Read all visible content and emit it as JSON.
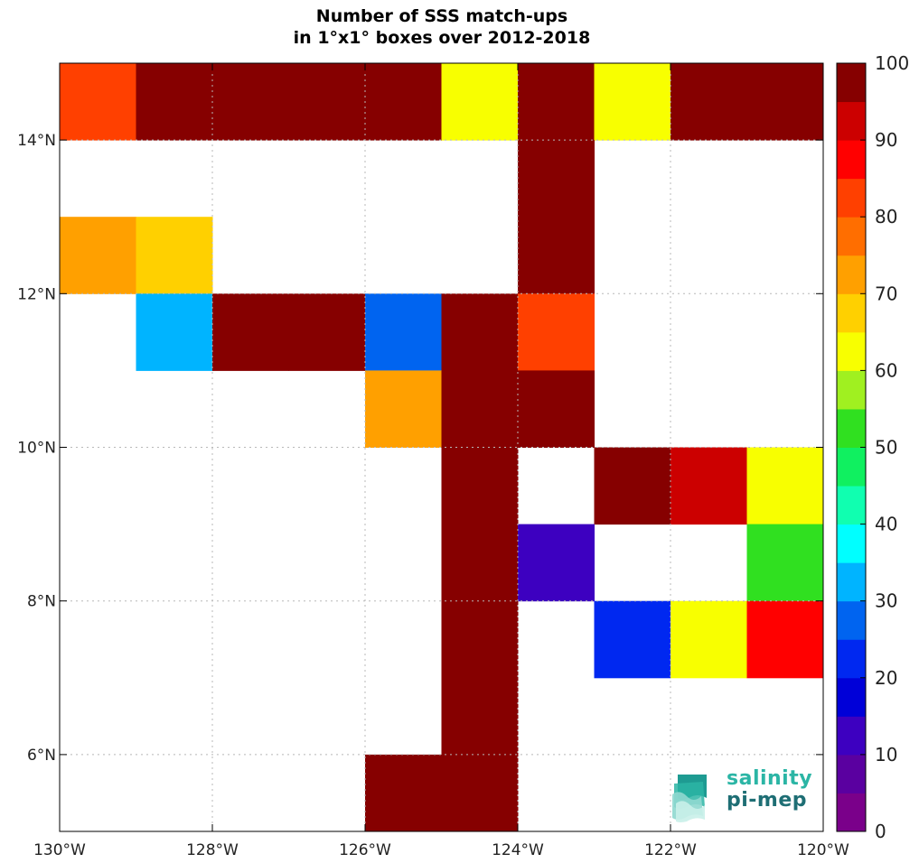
{
  "chart_data": {
    "type": "heatmap",
    "title_lines": [
      "Number of SSS match-ups",
      "in 1°x1° boxes over 2012-2018"
    ],
    "x_range": [
      -130,
      -120
    ],
    "y_range": [
      5,
      15
    ],
    "x_ticks": [
      {
        "value": -130,
        "label": "130°W"
      },
      {
        "value": -128,
        "label": "128°W"
      },
      {
        "value": -126,
        "label": "126°W"
      },
      {
        "value": -124,
        "label": "124°W"
      },
      {
        "value": -122,
        "label": "122°W"
      },
      {
        "value": -120,
        "label": "120°W"
      }
    ],
    "y_ticks": [
      {
        "value": 6,
        "label": "6°N"
      },
      {
        "value": 8,
        "label": "8°N"
      },
      {
        "value": 10,
        "label": "10°N"
      },
      {
        "value": 12,
        "label": "12°N"
      },
      {
        "value": 14,
        "label": "14°N"
      }
    ],
    "grid": true,
    "colorbar": {
      "min": 0,
      "max": 100,
      "step": 5,
      "tick_labels": [
        "0",
        "10",
        "20",
        "30",
        "40",
        "50",
        "60",
        "70",
        "80",
        "90",
        "100"
      ],
      "colors": [
        "#7a008a",
        "#5a00a0",
        "#3d00c0",
        "#0000d8",
        "#0028f0",
        "#0064f0",
        "#00b4ff",
        "#00ffff",
        "#10ffb0",
        "#10f060",
        "#30e020",
        "#a0f020",
        "#f8ff00",
        "#ffd000",
        "#ffa000",
        "#ff6e00",
        "#ff4000",
        "#ff0000",
        "#cc0000",
        "#860000"
      ]
    },
    "cells": [
      {
        "lon": -130,
        "lat": 14,
        "value": 82
      },
      {
        "lon": -129,
        "lat": 14,
        "value": 100
      },
      {
        "lon": -128,
        "lat": 14,
        "value": 100
      },
      {
        "lon": -127,
        "lat": 14,
        "value": 100
      },
      {
        "lon": -126,
        "lat": 14,
        "value": 100
      },
      {
        "lon": -125,
        "lat": 14,
        "value": 62
      },
      {
        "lon": -124,
        "lat": 14,
        "value": 100
      },
      {
        "lon": -123,
        "lat": 14,
        "value": 62
      },
      {
        "lon": -122,
        "lat": 14,
        "value": 100
      },
      {
        "lon": -121,
        "lat": 14,
        "value": 100
      },
      {
        "lon": -124,
        "lat": 13,
        "value": 100
      },
      {
        "lon": -130,
        "lat": 12,
        "value": 73
      },
      {
        "lon": -129,
        "lat": 12,
        "value": 67
      },
      {
        "lon": -124,
        "lat": 12,
        "value": 100
      },
      {
        "lon": -129,
        "lat": 11,
        "value": 32
      },
      {
        "lon": -128,
        "lat": 11,
        "value": 100
      },
      {
        "lon": -127,
        "lat": 11,
        "value": 100
      },
      {
        "lon": -126,
        "lat": 11,
        "value": 27
      },
      {
        "lon": -125,
        "lat": 11,
        "value": 100
      },
      {
        "lon": -124,
        "lat": 11,
        "value": 83
      },
      {
        "lon": -126,
        "lat": 10,
        "value": 73
      },
      {
        "lon": -125,
        "lat": 10,
        "value": 100
      },
      {
        "lon": -124,
        "lat": 10,
        "value": 100
      },
      {
        "lon": -125,
        "lat": 9,
        "value": 100
      },
      {
        "lon": -123,
        "lat": 9,
        "value": 100
      },
      {
        "lon": -122,
        "lat": 9,
        "value": 93
      },
      {
        "lon": -121,
        "lat": 9,
        "value": 62
      },
      {
        "lon": -125,
        "lat": 8,
        "value": 100
      },
      {
        "lon": -124,
        "lat": 8,
        "value": 12
      },
      {
        "lon": -121,
        "lat": 8,
        "value": 53
      },
      {
        "lon": -125,
        "lat": 7,
        "value": 100
      },
      {
        "lon": -123,
        "lat": 7,
        "value": 22
      },
      {
        "lon": -122,
        "lat": 7,
        "value": 62
      },
      {
        "lon": -121,
        "lat": 7,
        "value": 88
      },
      {
        "lon": -125,
        "lat": 6,
        "value": 100
      },
      {
        "lon": -125,
        "lat": 5,
        "value": 100
      },
      {
        "lon": -126,
        "lat": 5,
        "value": 100
      }
    ]
  },
  "logo": {
    "line1": "salinity",
    "line2": "pi-mep"
  }
}
